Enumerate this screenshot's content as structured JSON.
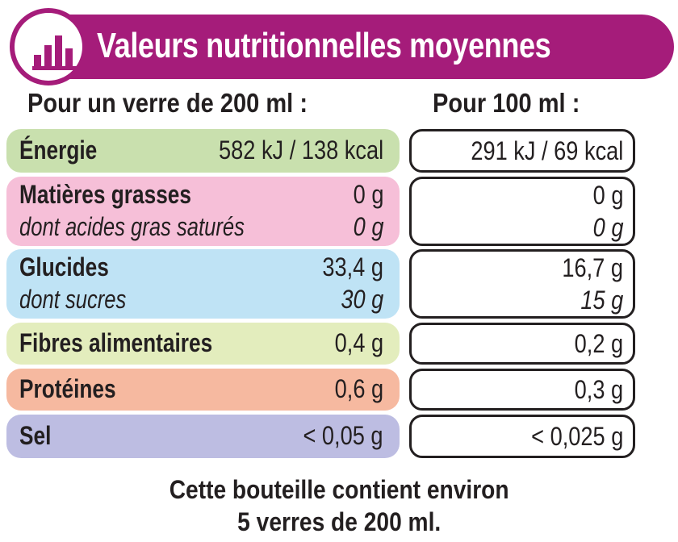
{
  "header": {
    "title": "Valeurs nutritionnelles moyennes",
    "icon": "bar-chart-icon",
    "color": "#a51c7a"
  },
  "columns": {
    "per_serving": "Pour un verre de 200 ml :",
    "per_100": "Pour 100 ml :"
  },
  "rows": [
    {
      "label": "Énergie",
      "value_serving": "582 kJ / 138 kcal",
      "value_100": "291 kJ / 69 kcal",
      "color": "#c9e0ae"
    },
    {
      "label": "Matières grasses",
      "value_serving": "0 g",
      "value_100": "0 g",
      "sub_label": "dont acides gras saturés",
      "sub_value_serving": "0 g",
      "sub_value_100": "0 g",
      "color": "#f6bfd8"
    },
    {
      "label": "Glucides",
      "value_serving": "33,4 g",
      "value_100": "16,7 g",
      "sub_label": "dont sucres",
      "sub_value_serving": "30 g",
      "sub_value_100": "15 g",
      "color": "#bfe3f5"
    },
    {
      "label": "Fibres alimentaires",
      "value_serving": "0,4 g",
      "value_100": "0,2 g",
      "color": "#e3edbd"
    },
    {
      "label": "Protéines",
      "value_serving": "0,6 g",
      "value_100": "0,3 g",
      "color": "#f6b9a0"
    },
    {
      "label": "Sel",
      "value_serving": "< 0,05 g",
      "value_100": "< 0,025 g",
      "color": "#bdbde2"
    }
  ],
  "footer": {
    "line1": "Cette bouteille contient environ",
    "line2": "5 verres de 200 ml."
  }
}
